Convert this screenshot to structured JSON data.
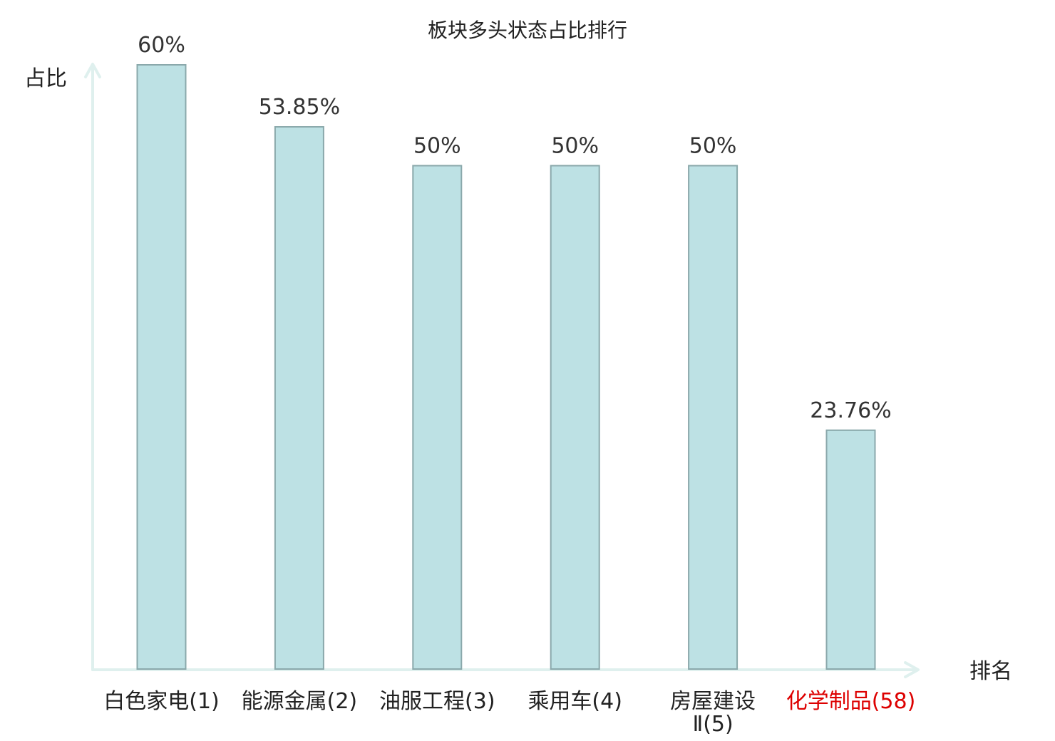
{
  "chart_data": {
    "type": "bar",
    "title": "板块多头状态占比排行",
    "ylabel": "占比",
    "xlabel": "排名",
    "ylim": [
      0,
      60
    ],
    "categories": [
      [
        "白色家电(1)"
      ],
      [
        "能源金属(2)"
      ],
      [
        "油服工程(3)"
      ],
      [
        "乘用车(4)"
      ],
      [
        "房屋建设",
        "Ⅱ(5)"
      ],
      [
        "化学制品(58)"
      ]
    ],
    "values": [
      60,
      53.85,
      50,
      50,
      50,
      23.76
    ],
    "data_labels": [
      "60%",
      "53.85%",
      "50%",
      "50%",
      "50%",
      "23.76%"
    ],
    "highlight_index": 5,
    "colors": {
      "bar_fill": "#bde1e4",
      "bar_stroke": "#8aa8ab",
      "axis": "#dff0ee",
      "highlight_label": "#dd0000"
    },
    "grid": false,
    "legend": "none"
  }
}
